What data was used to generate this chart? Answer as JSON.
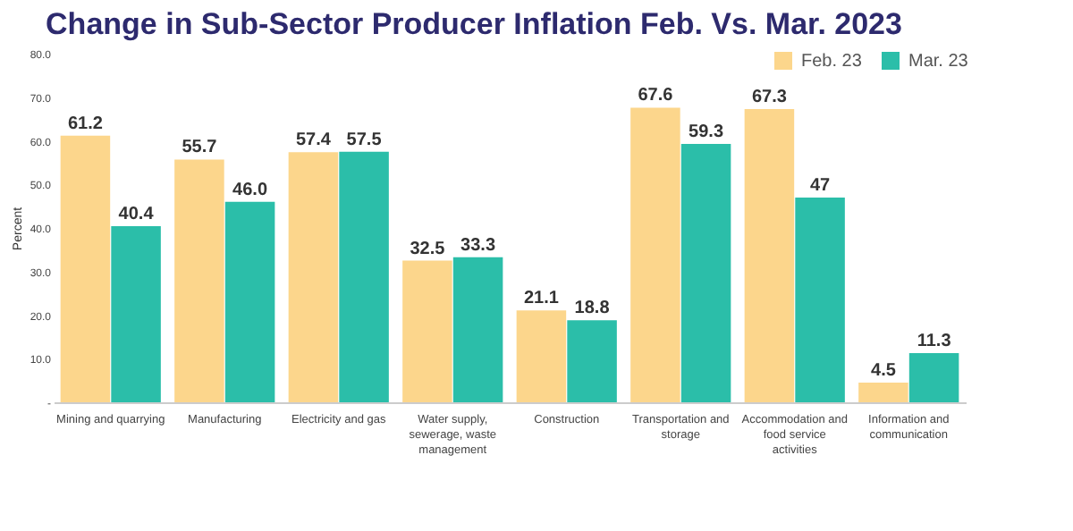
{
  "chart_data": {
    "type": "bar",
    "title": "Change in Sub-Sector Producer Inflation Feb. Vs. Mar. 2023",
    "ylabel": "Percent",
    "categories": [
      "Mining and quarrying",
      "Manufacturing",
      "Electricity and gas",
      "Water supply, sewerage, waste management",
      "Construction",
      "Transportation and storage",
      "Accommodation and food service activities",
      "Information and communication"
    ],
    "series": [
      {
        "name": "Feb. 23",
        "color": "#fcd68c",
        "values": [
          61.2,
          55.7,
          57.4,
          32.5,
          21.1,
          67.6,
          67.3,
          4.5
        ],
        "value_labels": [
          "61.2",
          "55.7",
          "57.4",
          "32.5",
          "21.1",
          "67.6",
          "67.3",
          "4.5"
        ]
      },
      {
        "name": "Mar. 23",
        "color": "#2bbea9",
        "values": [
          40.4,
          46.0,
          57.5,
          33.3,
          18.8,
          59.3,
          47,
          11.3
        ],
        "value_labels": [
          "40.4",
          "46.0",
          "57.5",
          "33.3",
          "18.8",
          "59.3",
          "47",
          "11.3"
        ]
      }
    ],
    "ylim": [
      0,
      80
    ],
    "yticks": [
      {
        "value": 0,
        "label": "-"
      },
      {
        "value": 10,
        "label": "10.0"
      },
      {
        "value": 20,
        "label": "20.0"
      },
      {
        "value": 30,
        "label": "30.0"
      },
      {
        "value": 40,
        "label": "40.0"
      },
      {
        "value": 50,
        "label": "50.0"
      },
      {
        "value": 60,
        "label": "60.0"
      },
      {
        "value": 70,
        "label": "70.0"
      },
      {
        "value": 80,
        "label": "80.0"
      }
    ],
    "grid": false,
    "legend": "top right"
  }
}
